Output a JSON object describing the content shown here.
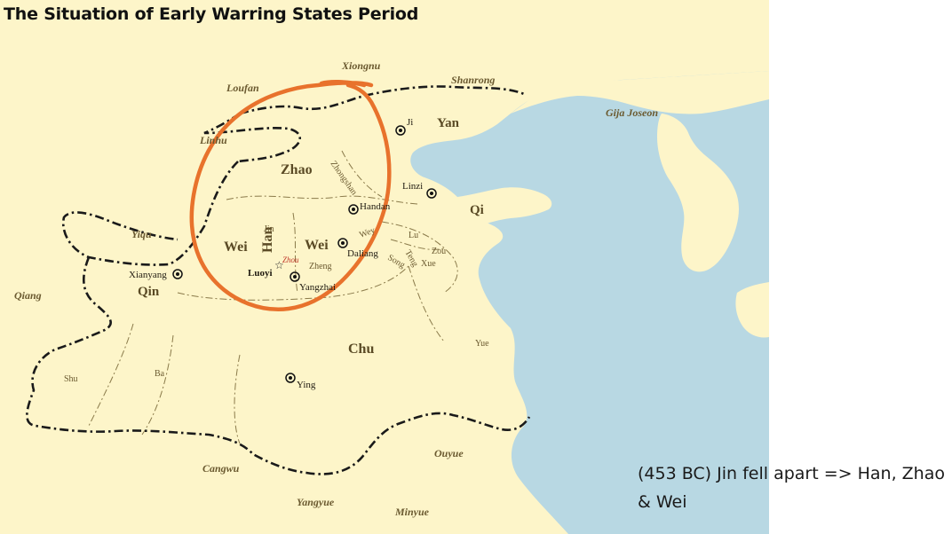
{
  "title": "The Situation of Early Warring States Period",
  "caption": "(453 BC) Jin fell apart => Han, Zhao & Wei",
  "colors": {
    "land": "#fdf5c9",
    "sea": "#b8d8e3",
    "border": "#1a1a1a",
    "highlight": "#e8722c"
  },
  "highlight": {
    "shape": "hand-drawn circle",
    "encloses": [
      "Zhao",
      "Han",
      "Wei"
    ]
  },
  "map_labels": {
    "peoples": {
      "xiongnu": "Xiongnu",
      "loufan": "Loufan",
      "shanrong": "Shanrong",
      "gija_joseon": "Gija Joseon",
      "linhu": "Linhu",
      "yiqu": "Yiqu",
      "qiang": "Qiang",
      "cangwu": "Cangwu",
      "yangyue": "Yangyue",
      "minyue": "Minyue",
      "ouyue": "Ouyue"
    },
    "states": {
      "yan": "Yan",
      "zhao": "Zhao",
      "zhongshan": "Zhongshan",
      "qi": "Qi",
      "wei_west": "Wei",
      "han": "Han",
      "wei_east": "Wei",
      "lu": "Lu",
      "zou": "Zou",
      "xue": "Xue",
      "song": "Song",
      "teng": "Teng",
      "zheng": "Zheng",
      "wey": "Wey",
      "jin": "Jin",
      "zhou": "Zhou",
      "qin": "Qin",
      "chu": "Chu",
      "yue": "Yue",
      "shu": "Shu",
      "ba": "Ba"
    },
    "cities": {
      "ji": "Ji",
      "linzi": "Linzi",
      "handan": "Handan",
      "daliang": "Daliang",
      "luoyi": "Luoyi",
      "yangzhai": "Yangzhai",
      "xianyang": "Xianyang",
      "ying": "Ying"
    }
  }
}
